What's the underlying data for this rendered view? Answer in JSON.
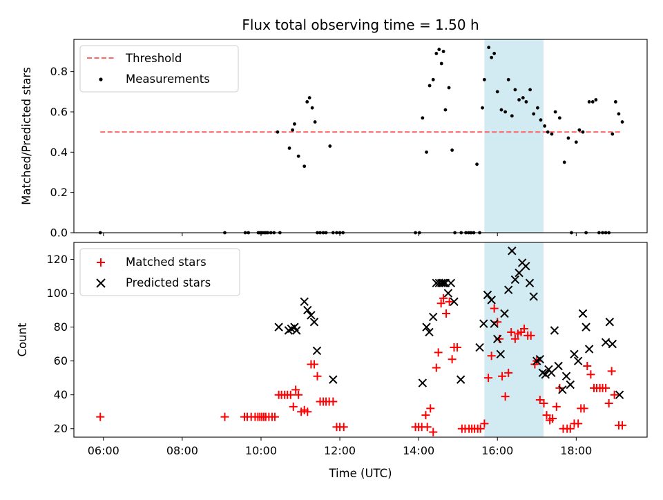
{
  "chart_data": {
    "title": "Flux total observing time = 1.50 h",
    "xlabel": "Time (UTC)",
    "x_unit": "hours UTC",
    "xlim": [
      5.25,
      19.8
    ],
    "x_ticks": [
      6,
      8,
      10,
      12,
      14,
      16,
      18
    ],
    "x_tick_labels": [
      "06:00",
      "08:00",
      "10:00",
      "12:00",
      "14:00",
      "16:00",
      "18:00"
    ],
    "highlight_span": {
      "x": [
        15.67,
        17.17
      ],
      "color": "#add8e6"
    },
    "panels": [
      {
        "type": "scatter",
        "ylabel": "Matched/Predicted stars",
        "ylim": [
          0,
          0.96
        ],
        "y_ticks": [
          0.0,
          0.2,
          0.4,
          0.6,
          0.8
        ],
        "y_tick_labels": [
          "0.0",
          "0.2",
          "0.4",
          "0.6",
          "0.8"
        ],
        "legend_position": "upper-left",
        "series": [
          {
            "name": "Threshold",
            "kind": "dashed-line",
            "color": "#ff6666",
            "x": [
              5.92,
              19.17
            ],
            "y": [
              0.5,
              0.5
            ]
          },
          {
            "name": "Measurements",
            "kind": "points",
            "color": "#000000",
            "x": [
              5.92,
              9.08,
              9.6,
              9.68,
              9.93,
              9.97,
              10.0,
              10.03,
              10.08,
              10.12,
              10.17,
              10.25,
              10.33,
              10.42,
              10.48,
              10.72,
              10.8,
              10.85,
              10.95,
              11.1,
              11.17,
              11.23,
              11.3,
              11.37,
              11.43,
              11.5,
              11.58,
              11.65,
              11.75,
              11.83,
              11.92,
              12.0,
              12.08,
              13.92,
              14.02,
              14.1,
              14.2,
              14.28,
              14.37,
              14.45,
              14.52,
              14.58,
              14.63,
              14.68,
              14.77,
              14.85,
              14.92,
              15.08,
              15.2,
              15.27,
              15.33,
              15.4,
              15.48,
              15.55,
              15.62,
              15.67,
              15.78,
              15.85,
              15.92,
              16.0,
              16.1,
              16.2,
              16.28,
              16.37,
              16.45,
              16.55,
              16.65,
              16.73,
              16.83,
              16.92,
              17.02,
              17.1,
              17.2,
              17.28,
              17.38,
              17.47,
              17.58,
              17.7,
              17.8,
              17.88,
              18.0,
              18.08,
              18.17,
              18.25,
              18.33,
              18.42,
              18.5,
              18.58,
              18.67,
              18.75,
              18.83,
              18.92,
              19.0,
              19.08,
              19.17
            ],
            "y": [
              0.0,
              0.0,
              0.0,
              0.0,
              0.0,
              0.0,
              0.0,
              0.0,
              0.0,
              0.0,
              0.0,
              0.0,
              0.0,
              0.5,
              0.0,
              0.42,
              0.51,
              0.54,
              0.38,
              0.33,
              0.65,
              0.67,
              0.62,
              0.55,
              0.0,
              0.0,
              0.0,
              0.0,
              0.43,
              0.0,
              0.0,
              0.0,
              0.0,
              0.0,
              0.0,
              0.57,
              0.4,
              0.73,
              0.76,
              0.89,
              0.91,
              0.84,
              0.9,
              0.61,
              0.72,
              0.41,
              0.0,
              0.0,
              0.0,
              0.0,
              0.0,
              0.0,
              0.34,
              0.0,
              0.62,
              0.76,
              0.92,
              0.87,
              0.89,
              0.7,
              0.61,
              0.6,
              0.76,
              0.58,
              0.71,
              0.66,
              0.67,
              0.65,
              0.71,
              0.59,
              0.62,
              0.56,
              0.53,
              0.5,
              0.49,
              0.6,
              0.57,
              0.35,
              0.47,
              0.0,
              0.45,
              0.51,
              0.5,
              0.0,
              0.65,
              0.65,
              0.66,
              0.0,
              0.0,
              0.0,
              0.0,
              0.49,
              0.65,
              0.59,
              0.55
            ]
          }
        ]
      },
      {
        "type": "scatter",
        "ylabel": "Count",
        "ylim": [
          15,
          130
        ],
        "y_ticks": [
          20,
          40,
          60,
          80,
          100,
          120
        ],
        "y_tick_labels": [
          "20",
          "40",
          "60",
          "80",
          "100",
          "120"
        ],
        "legend_position": "upper-left",
        "series": [
          {
            "name": "Matched stars",
            "marker": "plus",
            "color": "#ff0000",
            "x": [
              5.92,
              9.08,
              9.58,
              9.65,
              9.75,
              9.85,
              9.92,
              9.97,
              10.02,
              10.07,
              10.12,
              10.2,
              10.28,
              10.35,
              10.45,
              10.52,
              10.6,
              10.67,
              10.75,
              10.82,
              10.88,
              10.95,
              11.02,
              11.1,
              11.18,
              11.27,
              11.35,
              11.43,
              11.5,
              11.58,
              11.65,
              11.73,
              11.83,
              11.92,
              12.0,
              12.1,
              13.92,
              14.0,
              14.08,
              14.18,
              14.22,
              14.3,
              14.37,
              14.45,
              14.5,
              14.57,
              14.63,
              14.7,
              14.78,
              14.85,
              14.9,
              14.98,
              15.1,
              15.18,
              15.28,
              15.35,
              15.42,
              15.5,
              15.57,
              15.67,
              15.77,
              15.85,
              15.92,
              16.0,
              16.05,
              16.12,
              16.2,
              16.28,
              16.35,
              16.45,
              16.52,
              16.6,
              16.68,
              16.77,
              16.85,
              16.95,
              17.0,
              17.08,
              17.18,
              17.25,
              17.33,
              17.4,
              17.5,
              17.58,
              17.67,
              17.77,
              17.85,
              17.95,
              18.05,
              18.12,
              18.2,
              18.28,
              18.37,
              18.45,
              18.52,
              18.6,
              18.67,
              18.75,
              18.83,
              18.9,
              18.97,
              19.08,
              19.17
            ],
            "y": [
              27,
              27,
              27,
              27,
              27,
              27,
              27,
              27,
              27,
              27,
              27,
              27,
              27,
              27,
              40,
              40,
              40,
              40,
              40,
              33,
              43,
              40,
              30,
              31,
              30,
              58,
              58,
              51,
              36,
              36,
              36,
              36,
              36,
              21,
              21,
              21,
              21,
              21,
              21,
              28,
              21,
              32,
              18,
              56,
              65,
              94,
              97,
              88,
              95,
              61,
              68,
              68,
              20,
              20,
              20,
              20,
              20,
              20,
              20,
              23,
              50,
              63,
              91,
              83,
              73,
              51,
              39,
              53,
              77,
              73,
              76,
              77,
              79,
              75,
              75,
              58,
              60,
              37,
              35,
              28,
              25,
              26,
              33,
              44,
              20,
              20,
              20,
              23,
              23,
              32,
              32,
              57,
              52,
              44,
              44,
              44,
              44,
              44,
              35,
              54,
              40,
              22,
              22
            ]
          },
          {
            "name": "Predicted stars",
            "marker": "x",
            "color": "#000000",
            "x": [
              10.45,
              10.7,
              10.77,
              10.85,
              10.9,
              11.1,
              11.18,
              11.27,
              11.35,
              11.42,
              11.83,
              14.1,
              14.2,
              14.27,
              14.37,
              14.45,
              14.52,
              14.58,
              14.63,
              14.68,
              14.75,
              14.82,
              14.9,
              15.07,
              15.55,
              15.65,
              15.75,
              15.85,
              15.92,
              16.0,
              16.08,
              16.18,
              16.28,
              16.37,
              16.45,
              16.55,
              16.63,
              16.72,
              16.82,
              16.92,
              17.0,
              17.08,
              17.15,
              17.22,
              17.3,
              17.37,
              17.45,
              17.55,
              17.65,
              17.75,
              17.85,
              17.95,
              18.05,
              18.17,
              18.25,
              18.33,
              18.75,
              18.85,
              18.92,
              19.1
            ],
            "y": [
              80,
              78,
              79,
              80,
              78,
              95,
              90,
              87,
              83,
              66,
              49,
              47,
              80,
              77,
              86,
              106,
              106,
              106,
              106,
              106,
              100,
              106,
              95,
              49,
              68,
              82,
              99,
              96,
              82,
              73,
              64,
              88,
              102,
              125,
              108,
              112,
              118,
              116,
              106,
              98,
              60,
              61,
              53,
              52,
              55,
              53,
              78,
              57,
              43,
              51,
              46,
              64,
              60,
              88,
              80,
              67,
              71,
              83,
              70,
              40
            ]
          }
        ]
      }
    ]
  }
}
